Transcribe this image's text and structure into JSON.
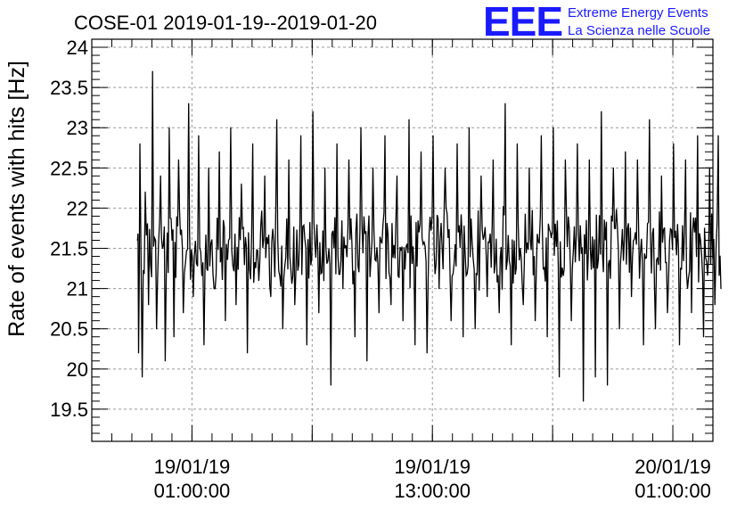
{
  "chart_data": {
    "type": "line",
    "title": "COSE-01 2019-01-19--2019-01-20",
    "xlabel": "",
    "ylabel": "Rate of events with hits [Hz]",
    "ylim": [
      19.1,
      24.1
    ],
    "xlim": [
      "2019-01-18 20:00:00",
      "2019-01-20 03:00:00"
    ],
    "y_ticks": [
      "19.5",
      "20",
      "20.5",
      "21",
      "21.5",
      "22",
      "22.5",
      "23",
      "23.5",
      "24"
    ],
    "x_ticks": [
      {
        "date": "19/01/19",
        "time": "01:00:00"
      },
      {
        "date": "19/01/19",
        "time": "13:00:00"
      },
      {
        "date": "20/01/19",
        "time": "01:00:00"
      }
    ],
    "grid": true,
    "line_color": "#000000",
    "series": [
      {
        "x": [
          "2019-01-18 22:17:00",
          "2019-01-18 22:20:00",
          "2019-01-18 22:24:00",
          "2019-01-18 22:31:00",
          "2019-01-18 22:40:00",
          "2019-01-18 22:50:00",
          "2019-01-18 23:02:00",
          "2019-01-18 23:14:00",
          "2019-01-18 23:26:00",
          "2019-01-18 23:40:00",
          "2019-01-18 23:52:00",
          "2019-01-19 00:06:00",
          "2019-01-19 00:20:00",
          "2019-01-19 00:34:00",
          "2019-01-19 00:50:00",
          "2019-01-19 01:04:00",
          "2019-01-19 01:20:00",
          "2019-01-19 01:36:00",
          "2019-01-19 01:50:00",
          "2019-01-19 02:06:00",
          "2019-01-19 02:22:00",
          "2019-01-19 02:40:00",
          "2019-01-19 02:56:00",
          "2019-01-19 03:12:00",
          "2019-01-19 03:28:00",
          "2019-01-19 03:46:00",
          "2019-01-19 04:02:00",
          "2019-01-19 04:20:00",
          "2019-01-19 04:38:00",
          "2019-01-19 04:56:00",
          "2019-01-19 05:14:00",
          "2019-01-19 05:32:00",
          "2019-01-19 05:50:00",
          "2019-01-19 06:08:00",
          "2019-01-19 06:26:00",
          "2019-01-19 06:44:00",
          "2019-01-19 07:02:00",
          "2019-01-19 07:20:00",
          "2019-01-19 07:38:00",
          "2019-01-19 07:56:00",
          "2019-01-19 08:14:00",
          "2019-01-19 08:32:00",
          "2019-01-19 08:50:00",
          "2019-01-19 09:08:00",
          "2019-01-19 09:26:00",
          "2019-01-19 09:44:00",
          "2019-01-19 10:02:00",
          "2019-01-19 10:20:00",
          "2019-01-19 10:38:00",
          "2019-01-19 10:56:00",
          "2019-01-19 11:14:00",
          "2019-01-19 11:32:00",
          "2019-01-19 11:50:00",
          "2019-01-19 12:08:00",
          "2019-01-19 12:26:00",
          "2019-01-19 12:44:00",
          "2019-01-19 13:02:00",
          "2019-01-19 13:20:00",
          "2019-01-19 13:38:00",
          "2019-01-19 13:56:00",
          "2019-01-19 14:14:00",
          "2019-01-19 14:32:00",
          "2019-01-19 14:50:00",
          "2019-01-19 15:08:00",
          "2019-01-19 15:26:00",
          "2019-01-19 15:44:00",
          "2019-01-19 16:02:00",
          "2019-01-19 16:20:00",
          "2019-01-19 16:38:00",
          "2019-01-19 16:56:00",
          "2019-01-19 17:14:00",
          "2019-01-19 17:32:00",
          "2019-01-19 17:50:00",
          "2019-01-19 18:08:00",
          "2019-01-19 18:26:00",
          "2019-01-19 18:44:00",
          "2019-01-19 19:02:00",
          "2019-01-19 19:20:00",
          "2019-01-19 19:38:00",
          "2019-01-19 19:56:00",
          "2019-01-19 20:14:00",
          "2019-01-19 20:32:00",
          "2019-01-19 20:50:00",
          "2019-01-19 21:08:00",
          "2019-01-19 21:26:00",
          "2019-01-19 21:44:00",
          "2019-01-19 22:02:00",
          "2019-01-19 22:20:00",
          "2019-01-19 22:38:00",
          "2019-01-19 22:56:00",
          "2019-01-19 23:14:00",
          "2019-01-19 23:32:00",
          "2019-01-19 23:50:00",
          "2019-01-20 00:08:00",
          "2019-01-20 00:26:00",
          "2019-01-20 00:44:00",
          "2019-01-20 01:02:00",
          "2019-01-20 01:20:00",
          "2019-01-20 01:38:00",
          "2019-01-20 01:56:00",
          "2019-01-20 02:14:00",
          "2019-01-20 02:32:00",
          "2019-01-20 02:50:00",
          "2019-01-20 03:06:00",
          "2019-01-20 03:16:00",
          "2019-01-20 03:24:00"
        ],
        "values": [
          21.6,
          20.2,
          22.8,
          19.9,
          22.2,
          20.8,
          23.7,
          20.5,
          22.4,
          20.1,
          23.0,
          20.4,
          22.6,
          20.7,
          23.3,
          20.9,
          22.9,
          20.3,
          22.5,
          21.0,
          22.7,
          20.6,
          23.0,
          20.8,
          22.3,
          20.2,
          22.8,
          21.1,
          22.4,
          20.9,
          23.1,
          20.5,
          22.6,
          20.8,
          22.9,
          20.3,
          23.2,
          20.7,
          22.5,
          19.8,
          22.8,
          21.0,
          22.6,
          20.4,
          23.0,
          20.1,
          22.5,
          20.7,
          22.9,
          20.8,
          22.4,
          20.6,
          23.1,
          20.3,
          22.7,
          20.2,
          22.9,
          21.0,
          22.5,
          20.6,
          22.8,
          20.4,
          23.0,
          20.5,
          22.4,
          20.9,
          22.6,
          20.7,
          23.3,
          20.3,
          22.8,
          20.8,
          22.5,
          20.6,
          22.9,
          20.4,
          23.0,
          19.9,
          22.6,
          20.6,
          22.8,
          19.6,
          22.6,
          19.9,
          23.2,
          19.8,
          22.5,
          20.5,
          22.7,
          20.9,
          22.6,
          20.3,
          23.1,
          20.5,
          22.4,
          20.7,
          22.8,
          20.3,
          22.6,
          20.7,
          22.9,
          20.4,
          22.5,
          20.8,
          22.9,
          21.0
        ]
      }
    ]
  },
  "logo": {
    "letters": "EEE",
    "line1": "Extreme Energy Events",
    "line2": "La Scienza nelle Scuole",
    "color": "#1a1aff"
  }
}
